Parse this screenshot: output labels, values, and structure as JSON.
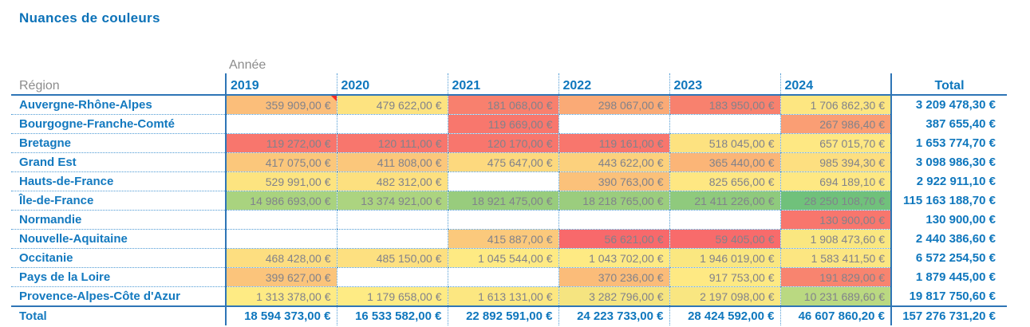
{
  "title": "Nuances de couleurs",
  "axis_label": "Année",
  "columns": {
    "region": "Région",
    "years": [
      "2019",
      "2020",
      "2021",
      "2022",
      "2023",
      "2024"
    ],
    "total": "Total"
  },
  "rows": [
    {
      "label": "Auvergne-Rhône-Alpes",
      "cells": [
        {
          "v": "359 909,00 €",
          "bg": "#FBBE7A",
          "note": true
        },
        {
          "v": "479 622,00 €",
          "bg": "#FDE380"
        },
        {
          "v": "181 068,00 €",
          "bg": "#F8806E"
        },
        {
          "v": "298 067,00 €",
          "bg": "#FAAA76"
        },
        {
          "v": "183 950,00 €",
          "bg": "#F8816E"
        },
        {
          "v": "1 706 862,30 €",
          "bg": "#FDE681"
        }
      ],
      "total": "3 209 478,30 €"
    },
    {
      "label": "Bourgogne-Franche-Comté",
      "cells": [
        null,
        null,
        {
          "v": "119 669,00 €",
          "bg": "#F8776D"
        },
        null,
        null,
        {
          "v": "267 986,40 €",
          "bg": "#FA9E74"
        }
      ],
      "total": "387 655,40 €"
    },
    {
      "label": "Bretagne",
      "cells": [
        {
          "v": "119 272,00 €",
          "bg": "#F8766D"
        },
        {
          "v": "120 111,00 €",
          "bg": "#F8766D"
        },
        {
          "v": "120 170,00 €",
          "bg": "#F8766D"
        },
        {
          "v": "119 161,00 €",
          "bg": "#F8766D"
        },
        {
          "v": "518 045,00 €",
          "bg": "#FDE280"
        },
        {
          "v": "657 015,70 €",
          "bg": "#FEE883"
        }
      ],
      "total": "1 653 774,70 €"
    },
    {
      "label": "Grand Est",
      "cells": [
        {
          "v": "417 075,00 €",
          "bg": "#FBC77B"
        },
        {
          "v": "411 808,00 €",
          "bg": "#FBC77B"
        },
        {
          "v": "475 647,00 €",
          "bg": "#FDD97E"
        },
        {
          "v": "443 622,00 €",
          "bg": "#FCD17D"
        },
        {
          "v": "365 440,00 €",
          "bg": "#FBB577"
        },
        {
          "v": "985 394,30 €",
          "bg": "#FDDF80"
        }
      ],
      "total": "3 098 986,30 €"
    },
    {
      "label": "Hauts-de-France",
      "cells": [
        {
          "v": "529 991,00 €",
          "bg": "#FDE480"
        },
        {
          "v": "482 312,00 €",
          "bg": "#FDE07F"
        },
        null,
        {
          "v": "390 763,00 €",
          "bg": "#FBC17A"
        },
        {
          "v": "825 656,00 €",
          "bg": "#FEE782"
        },
        {
          "v": "694 189,10 €",
          "bg": "#FEE883"
        }
      ],
      "total": "2 922 911,10 €"
    },
    {
      "label": "Île-de-France",
      "cells": [
        {
          "v": "14 986 693,00 €",
          "bg": "#A9D37F"
        },
        {
          "v": "13 374 921,00 €",
          "bg": "#ACD480"
        },
        {
          "v": "18 921 475,00 €",
          "bg": "#98CC7D"
        },
        {
          "v": "18 218 765,00 €",
          "bg": "#9BCD7E"
        },
        {
          "v": "21 411 226,00 €",
          "bg": "#8FCA7D"
        },
        {
          "v": "28 250 108,70 €",
          "bg": "#70C17B"
        }
      ],
      "total": "115 163 188,70 €"
    },
    {
      "label": "Normandie",
      "cells": [
        null,
        null,
        null,
        null,
        null,
        {
          "v": "130 900,00 €",
          "bg": "#F8766D"
        }
      ],
      "total": "130 900,00 €"
    },
    {
      "label": "Nouvelle-Aquitaine",
      "cells": [
        null,
        null,
        {
          "v": "415 887,00 €",
          "bg": "#FBC97C"
        },
        {
          "v": "56 621,00 €",
          "bg": "#F8696B"
        },
        {
          "v": "59 405,00 €",
          "bg": "#F86B6B"
        },
        {
          "v": "1 908 473,60 €",
          "bg": "#FAE780"
        }
      ],
      "total": "2 440 386,60 €"
    },
    {
      "label": "Occitanie",
      "cells": [
        {
          "v": "468 428,00 €",
          "bg": "#FDDE80"
        },
        {
          "v": "485 150,00 €",
          "bg": "#FDE080"
        },
        {
          "v": "1 045 544,00 €",
          "bg": "#FEEA83"
        },
        {
          "v": "1 043 702,00 €",
          "bg": "#FEEA83"
        },
        {
          "v": "1 946 019,00 €",
          "bg": "#FAE780"
        },
        {
          "v": "1 583 411,50 €",
          "bg": "#FCE681"
        }
      ],
      "total": "6 572 254,50 €"
    },
    {
      "label": "Pays de la Loire",
      "cells": [
        {
          "v": "399 627,00 €",
          "bg": "#FBC47B"
        },
        null,
        null,
        {
          "v": "370 236,00 €",
          "bg": "#FBBC79"
        },
        {
          "v": "917 753,00 €",
          "bg": "#FEE983"
        },
        {
          "v": "191 829,00 €",
          "bg": "#F8846F"
        }
      ],
      "total": "1 879 445,00 €"
    },
    {
      "label": "Provence-Alpes-Côte d'Azur",
      "cells": [
        {
          "v": "1 313 378,00 €",
          "bg": "#FEEB84"
        },
        {
          "v": "1 179 658,00 €",
          "bg": "#FEEB84"
        },
        {
          "v": "1 613 131,00 €",
          "bg": "#FCE781"
        },
        {
          "v": "3 282 796,00 €",
          "bg": "#F5E480"
        },
        {
          "v": "2 197 098,00 €",
          "bg": "#F9E681"
        },
        {
          "v": "10 231 689,60 €",
          "bg": "#BAD981"
        }
      ],
      "total": "19 817 750,60 €"
    }
  ],
  "total_row": {
    "label": "Total",
    "cells": [
      "18 594 373,00 €",
      "16 533 582,00 €",
      "22 892 591,00 €",
      "24 223 733,00 €",
      "28 424 592,00 €",
      "46 607 860,20 €"
    ],
    "total": "157 276 731,20 €"
  },
  "colors": {
    "accent_blue": "#0F77BD",
    "line_blue": "#2E75B6",
    "dotted_blue": "#4F9BD5",
    "value_gray": "#81828B",
    "header_gray": "#8C8C8C",
    "comment_red": "#FF2B1F",
    "scale_min_red": "#F8696B",
    "scale_mid_yellow": "#FFEB84",
    "scale_max_green": "#63BE7B"
  }
}
